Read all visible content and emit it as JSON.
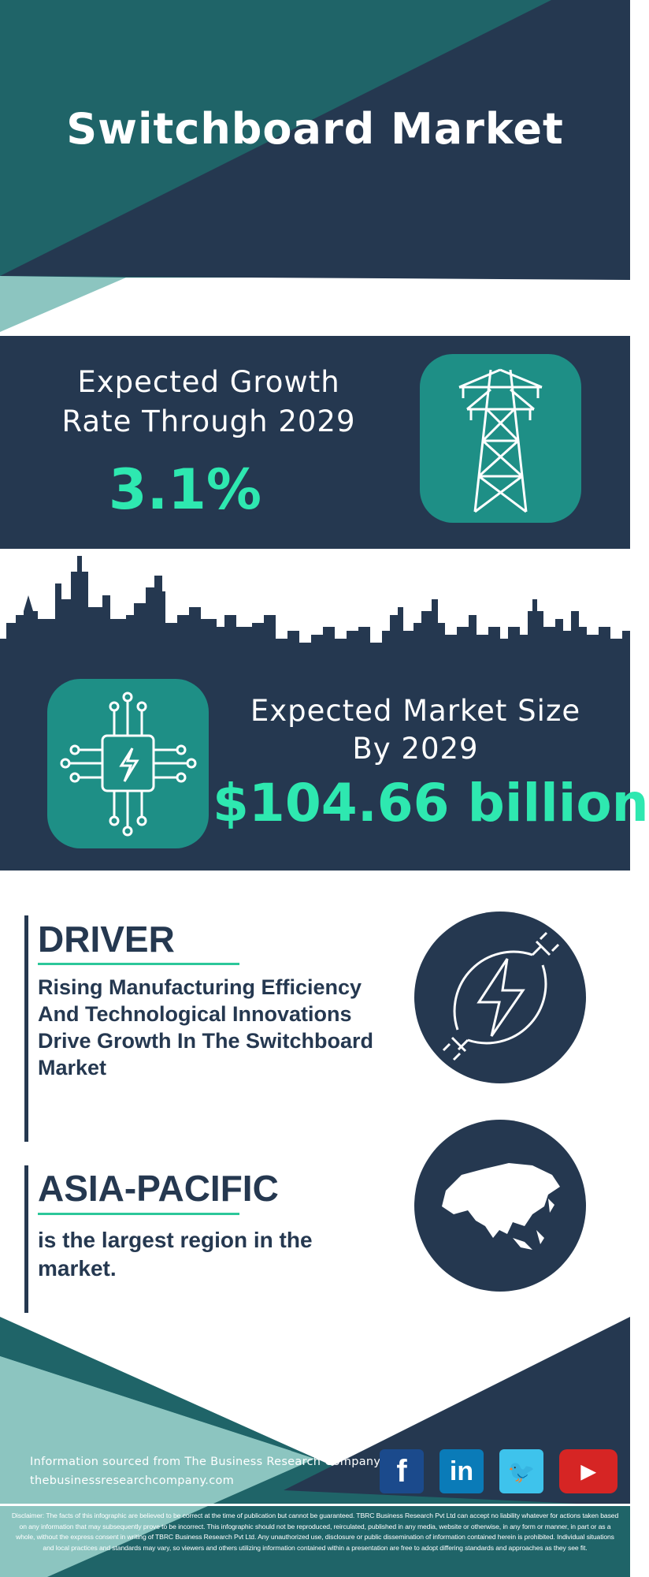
{
  "header": {
    "title": "Switchboard Market"
  },
  "growth": {
    "label_line1": "Expected Growth",
    "label_line2": "Rate Through 2029",
    "value": "3.1%",
    "icon": "power-tower-icon"
  },
  "market": {
    "label_line1": "Expected Market Size",
    "label_line2": "By 2029",
    "value": "$104.66 billion",
    "icon": "circuit-chip-icon"
  },
  "driver": {
    "heading": "DRIVER",
    "text": "Rising Manufacturing Efficiency And Technological Innovations Drive Growth In The Switchboard Market",
    "icon": "power-plug-icon"
  },
  "region": {
    "heading": "ASIA-PACIFIC",
    "text": "is the largest region in the market.",
    "icon": "asia-map-icon"
  },
  "footer": {
    "source": "Information sourced from The Business Research Company",
    "website": "thebusinessresearchcompany.com",
    "social": [
      {
        "name": "facebook",
        "glyph": "f",
        "color": "#1b4a8c"
      },
      {
        "name": "linkedin",
        "glyph": "in",
        "color": "#0a7bb8"
      },
      {
        "name": "twitter",
        "glyph": "🐦",
        "color": "#3ec3ec"
      },
      {
        "name": "youtube",
        "glyph": "▶",
        "color": "#d62524"
      }
    ],
    "disclaimer": "Disclaimer: The facts of this infographic are believed to be correct at the time of publication but cannot be guaranteed. TBRC Business Research Pvt Ltd can accept no liability whatever for actions taken based on any information that may subsequently prove to be incorrect. This infographic should not be reproduced, reirculated, published in any media, website or otherwise, in any form or manner, in part or as a whole, without the express consent in writing of TBRC Business Research Pvt Ltd. Any unauthorized use, disclosure or public dissemination of information contained herein is prohibited. Individual situations and local practices and standards may vary, so viewers and others utilizing information contained within a presentation are free to adopt differing standards and approaches as they see fit."
  },
  "colors": {
    "navy": "#253850",
    "teal": "#1f6468",
    "light_teal": "#8cc5c0",
    "accent": "#2ee8b0",
    "icon_box": "#1e8f86"
  }
}
